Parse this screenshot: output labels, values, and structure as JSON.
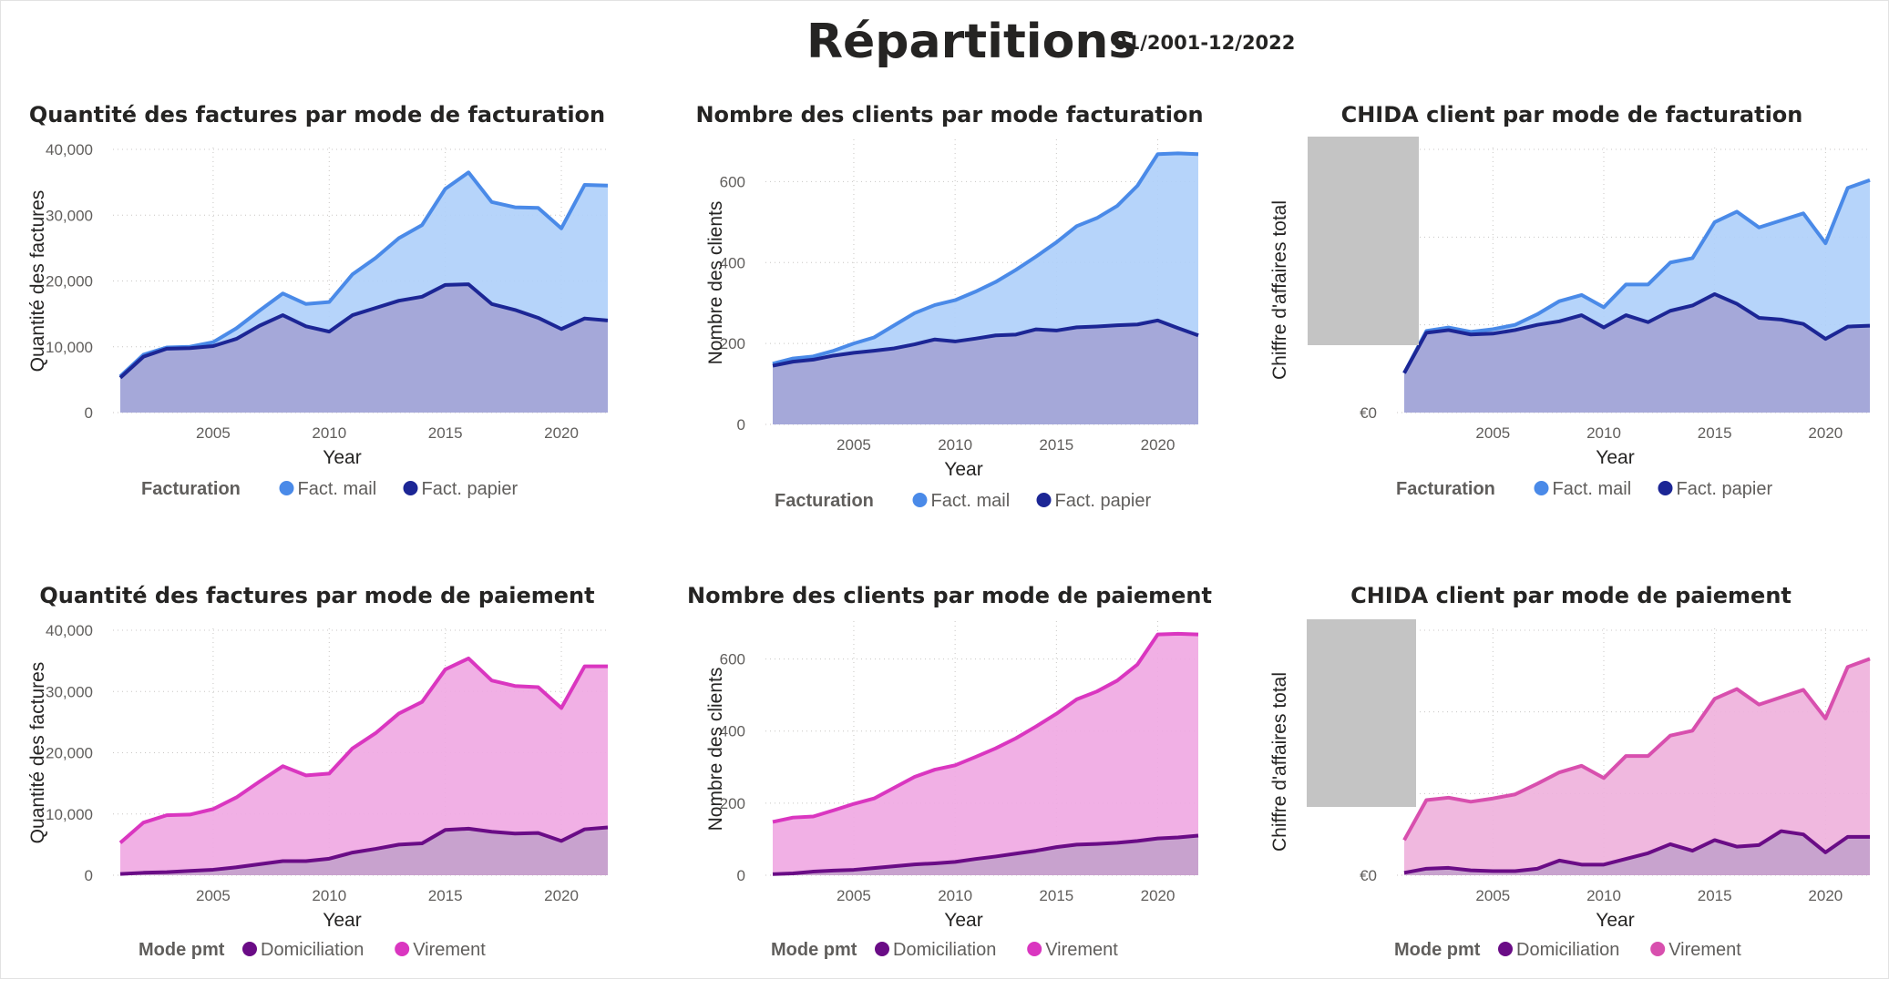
{
  "header": {
    "title": "Répartitions",
    "date_range": "01/2001-12/2022"
  },
  "chart_data": [
    {
      "id": "qty-invoices-billing",
      "type": "area",
      "title": "Quantité des factures par mode de facturation",
      "xlabel": "Year",
      "ylabel": "Quantité des factures",
      "x": [
        2001,
        2002,
        2003,
        2004,
        2005,
        2006,
        2007,
        2008,
        2009,
        2010,
        2011,
        2012,
        2013,
        2014,
        2015,
        2016,
        2017,
        2018,
        2019,
        2020,
        2021,
        2022
      ],
      "xticks": [
        "2005",
        "2010",
        "2015",
        "2020"
      ],
      "yticks": [
        "0",
        "10,000",
        "20,000",
        "30,000",
        "40,000"
      ],
      "ylim": [
        0,
        40000
      ],
      "legend_title": "Facturation",
      "series": [
        {
          "name": "Fact. mail",
          "values": [
            5500,
            8800,
            9900,
            10000,
            10700,
            12800,
            15500,
            18100,
            16500,
            16800,
            21000,
            23500,
            26500,
            28500,
            34000,
            36500,
            32000,
            31200,
            31100,
            28000,
            34600,
            34500
          ]
        },
        {
          "name": "Fact. papier",
          "values": [
            5300,
            8500,
            9700,
            9800,
            10100,
            11200,
            13200,
            14800,
            13100,
            12300,
            14800,
            15900,
            17000,
            17600,
            19400,
            19500,
            16500,
            15600,
            14400,
            12700,
            14300,
            14000
          ]
        }
      ]
    },
    {
      "id": "clients-billing",
      "type": "area",
      "title": "Nombre des clients par mode facturation",
      "xlabel": "Year",
      "ylabel": "Nombre des clients",
      "x": [
        2001,
        2002,
        2003,
        2004,
        2005,
        2006,
        2007,
        2008,
        2009,
        2010,
        2011,
        2012,
        2013,
        2014,
        2015,
        2016,
        2017,
        2018,
        2019,
        2020,
        2021,
        2022
      ],
      "xticks": [
        "2005",
        "2010",
        "2015",
        "2020"
      ],
      "yticks": [
        "0",
        "200",
        "400",
        "600"
      ],
      "ylim": [
        0,
        700
      ],
      "legend_title": "Facturation",
      "series": [
        {
          "name": "Fact. mail",
          "values": [
            150,
            163,
            168,
            182,
            200,
            215,
            245,
            275,
            295,
            307,
            328,
            352,
            382,
            415,
            450,
            490,
            510,
            540,
            590,
            668,
            670,
            668
          ]
        },
        {
          "name": "Fact. papier",
          "values": [
            145,
            155,
            160,
            170,
            177,
            182,
            188,
            198,
            210,
            205,
            212,
            220,
            222,
            235,
            232,
            240,
            242,
            245,
            247,
            257,
            238,
            220
          ]
        }
      ]
    },
    {
      "id": "chida-billing",
      "type": "area",
      "title": "CHIDA client par mode de facturation",
      "xlabel": "Year",
      "ylabel": "Chiffre d'affaires total",
      "x": [
        2001,
        2002,
        2003,
        2004,
        2005,
        2006,
        2007,
        2008,
        2009,
        2010,
        2011,
        2012,
        2013,
        2014,
        2015,
        2016,
        2017,
        2018,
        2019,
        2020,
        2021,
        2022
      ],
      "xticks": [
        "2005",
        "2010",
        "2015",
        "2020"
      ],
      "yticks": [
        "€0"
      ],
      "ylim": [
        0,
        300
      ],
      "legend_title": "Facturation",
      "series": [
        {
          "name": "Fact. mail",
          "values": [
            45,
            93,
            97,
            92,
            95,
            100,
            112,
            127,
            134,
            120,
            146,
            146,
            171,
            176,
            217,
            229,
            211,
            219,
            227,
            193,
            256,
            265
          ]
        },
        {
          "name": "Fact. papier",
          "values": [
            45,
            91,
            94,
            89,
            90,
            94,
            100,
            104,
            111,
            97,
            111,
            103,
            116,
            122,
            135,
            124,
            108,
            106,
            101,
            84,
            98,
            99
          ]
        }
      ]
    },
    {
      "id": "qty-invoices-payment",
      "type": "area",
      "title": "Quantité des factures par mode de paiement",
      "xlabel": "Year",
      "ylabel": "Quantité des factures",
      "x": [
        2001,
        2002,
        2003,
        2004,
        2005,
        2006,
        2007,
        2008,
        2009,
        2010,
        2011,
        2012,
        2013,
        2014,
        2015,
        2016,
        2017,
        2018,
        2019,
        2020,
        2021,
        2022
      ],
      "xticks": [
        "2005",
        "2010",
        "2015",
        "2020"
      ],
      "yticks": [
        "0",
        "10,000",
        "20,000",
        "30,000",
        "40,000"
      ],
      "ylim": [
        0,
        40000
      ],
      "legend_title": "Mode pmt",
      "series": [
        {
          "name": "Domiciliation",
          "values": [
            200,
            400,
            500,
            700,
            900,
            1300,
            1800,
            2300,
            2300,
            2700,
            3700,
            4300,
            5000,
            5200,
            7400,
            7600,
            7100,
            6800,
            6900,
            5600,
            7500,
            7800
          ]
        },
        {
          "name": "Virement",
          "values": [
            5300,
            8600,
            9800,
            9900,
            10800,
            12700,
            15300,
            17800,
            16300,
            16600,
            20700,
            23200,
            26400,
            28300,
            33600,
            35400,
            31800,
            30900,
            30700,
            27300,
            34100,
            34100
          ]
        }
      ]
    },
    {
      "id": "clients-payment",
      "type": "area",
      "title": "Nombre des clients par mode de paiement",
      "xlabel": "Year",
      "ylabel": "Nombre des clients",
      "x": [
        2001,
        2002,
        2003,
        2004,
        2005,
        2006,
        2007,
        2008,
        2009,
        2010,
        2011,
        2012,
        2013,
        2014,
        2015,
        2016,
        2017,
        2018,
        2019,
        2020,
        2021,
        2022
      ],
      "xticks": [
        "2005",
        "2010",
        "2015",
        "2020"
      ],
      "yticks": [
        "0",
        "200",
        "400",
        "600"
      ],
      "ylim": [
        0,
        700
      ],
      "legend_title": "Mode pmt",
      "series": [
        {
          "name": "Domiciliation",
          "values": [
            3,
            5,
            10,
            13,
            15,
            20,
            25,
            30,
            33,
            37,
            45,
            52,
            60,
            68,
            78,
            85,
            87,
            90,
            95,
            102,
            105,
            110
          ]
        },
        {
          "name": "Virement",
          "values": [
            148,
            160,
            163,
            180,
            198,
            213,
            243,
            273,
            293,
            305,
            328,
            352,
            380,
            413,
            448,
            488,
            510,
            540,
            585,
            668,
            670,
            668
          ]
        }
      ]
    },
    {
      "id": "chida-payment",
      "type": "area",
      "title": "CHIDA client par mode de paiement",
      "xlabel": "Year",
      "ylabel": "Chiffre d'affaires total",
      "x": [
        2001,
        2002,
        2003,
        2004,
        2005,
        2006,
        2007,
        2008,
        2009,
        2010,
        2011,
        2012,
        2013,
        2014,
        2015,
        2016,
        2017,
        2018,
        2019,
        2020,
        2021,
        2022
      ],
      "xticks": [
        "2005",
        "2010",
        "2015",
        "2020"
      ],
      "yticks": [
        "€0"
      ],
      "ylim": [
        0,
        300
      ],
      "legend_title": "Mode pmt",
      "series": [
        {
          "name": "Domiciliation",
          "values": [
            3,
            8,
            9,
            6,
            5,
            5,
            8,
            18,
            13,
            13,
            20,
            27,
            38,
            30,
            43,
            35,
            37,
            54,
            50,
            28,
            47,
            47
          ]
        },
        {
          "name": "Virement",
          "values": [
            43,
            92,
            95,
            90,
            94,
            99,
            112,
            126,
            134,
            119,
            146,
            146,
            171,
            177,
            216,
            228,
            209,
            218,
            227,
            192,
            255,
            265
          ]
        }
      ]
    }
  ],
  "colors": {
    "fact_mail": "#4a8ae8",
    "fact_mail_fill": "#b0d0fa",
    "fact_papier": "#1c2695",
    "fact_papier_fill": "#a4a4d6",
    "domiciliation": "#6a0c86",
    "domiciliation_fill": "#c4a1cc",
    "virement": "#da36c0",
    "virement_fill": "#f0a9e3",
    "virement_chida": "#d84fae",
    "virement_chida_fill": "#efb2dc",
    "placeholder": "#c4c4c4"
  }
}
